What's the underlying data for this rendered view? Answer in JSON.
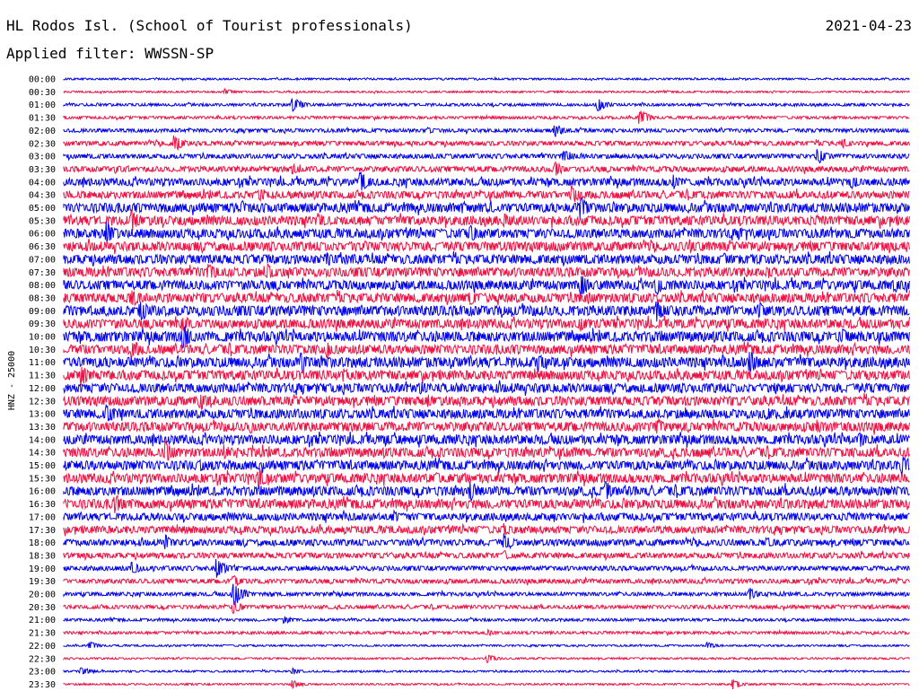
{
  "header": {
    "title": "HL Rodos Isl. (School of Tourist professionals)",
    "date": "2021-04-23",
    "filter": "Applied filter: WWSSN-SP"
  },
  "chart_data": {
    "type": "line",
    "title": "HL Rodos Isl. (School of Tourist professionals)",
    "ylabel": "HNZ - 25000",
    "colors": [
      "#0000ee",
      "#ee1144"
    ],
    "rows": [
      {
        "label": "00:00",
        "amp": 1,
        "events": []
      },
      {
        "label": "00:30",
        "amp": 1,
        "events": [
          [
            0.19,
            4
          ]
        ]
      },
      {
        "label": "01:00",
        "amp": 1.5,
        "events": [
          [
            0.27,
            9
          ],
          [
            0.63,
            8
          ]
        ]
      },
      {
        "label": "01:30",
        "amp": 1.5,
        "events": [
          [
            0.68,
            10
          ]
        ]
      },
      {
        "label": "02:00",
        "amp": 2,
        "events": [
          [
            0.58,
            8
          ],
          [
            0.43,
            4
          ]
        ]
      },
      {
        "label": "02:30",
        "amp": 2.5,
        "events": [
          [
            0.13,
            11
          ],
          [
            0.92,
            6
          ]
        ]
      },
      {
        "label": "03:00",
        "amp": 2.5,
        "events": [
          [
            0.59,
            9
          ],
          [
            0.89,
            10
          ],
          [
            0.44,
            3
          ]
        ]
      },
      {
        "label": "03:30",
        "amp": 3,
        "events": [
          [
            0.58,
            10
          ],
          [
            0.27,
            7
          ],
          [
            0.06,
            6
          ]
        ]
      },
      {
        "label": "04:00",
        "amp": 4,
        "events": [
          [
            0.35,
            13
          ],
          [
            0.72,
            9
          ],
          [
            0.93,
            9
          ]
        ]
      },
      {
        "label": "04:30",
        "amp": 4,
        "events": [
          [
            0.6,
            12
          ],
          [
            0.23,
            8
          ]
        ]
      },
      {
        "label": "05:00",
        "amp": 5,
        "events": [
          [
            0.61,
            14
          ],
          [
            0.21,
            9
          ],
          [
            0.47,
            8
          ]
        ]
      },
      {
        "label": "05:30",
        "amp": 5,
        "events": [
          [
            0.08,
            13
          ],
          [
            0.3,
            10
          ],
          [
            0.52,
            9
          ]
        ]
      },
      {
        "label": "06:00",
        "amp": 5,
        "events": [
          [
            0.05,
            15
          ],
          [
            0.48,
            11
          ],
          [
            0.8,
            7
          ]
        ]
      },
      {
        "label": "06:30",
        "amp": 5,
        "events": [
          [
            0.74,
            9
          ],
          [
            0.34,
            6
          ]
        ]
      },
      {
        "label": "07:00",
        "amp": 5,
        "events": [
          [
            0.31,
            10
          ],
          [
            0.78,
            8
          ]
        ]
      },
      {
        "label": "07:30",
        "amp": 5,
        "events": [
          [
            0.17,
            13
          ],
          [
            0.24,
            10
          ],
          [
            0.83,
            9
          ]
        ]
      },
      {
        "label": "08:00",
        "amp": 5,
        "events": [
          [
            0.61,
            14
          ],
          [
            0.7,
            13
          ],
          [
            0.98,
            11
          ]
        ]
      },
      {
        "label": "08:30",
        "amp": 5,
        "events": [
          [
            0.08,
            12
          ],
          [
            0.48,
            9
          ],
          [
            0.62,
            8
          ]
        ]
      },
      {
        "label": "09:00",
        "amp": 5.5,
        "events": [
          [
            0.09,
            14
          ],
          [
            0.7,
            13
          ],
          [
            0.82,
            12
          ]
        ]
      },
      {
        "label": "09:30",
        "amp": 5,
        "events": [
          [
            0.14,
            12
          ],
          [
            0.61,
            9
          ]
        ]
      },
      {
        "label": "10:00",
        "amp": 5.5,
        "events": [
          [
            0.14,
            16
          ],
          [
            0.92,
            10
          ]
        ]
      },
      {
        "label": "10:30",
        "amp": 5,
        "events": [
          [
            0.08,
            13
          ],
          [
            0.31,
            11
          ]
        ]
      },
      {
        "label": "11:00",
        "amp": 5.5,
        "events": [
          [
            0.28,
            15
          ],
          [
            0.81,
            14
          ],
          [
            0.56,
            12
          ]
        ]
      },
      {
        "label": "11:30",
        "amp": 5,
        "events": [
          [
            0.02,
            13
          ],
          [
            0.33,
            9
          ]
        ]
      },
      {
        "label": "12:00",
        "amp": 5,
        "events": [
          [
            0.42,
            9
          ],
          [
            0.84,
            8
          ]
        ]
      },
      {
        "label": "12:30",
        "amp": 5,
        "events": [
          [
            0.16,
            12
          ],
          [
            0.43,
            8
          ]
        ]
      },
      {
        "label": "13:00",
        "amp": 5,
        "events": [
          [
            0.05,
            14
          ],
          [
            0.83,
            8
          ]
        ]
      },
      {
        "label": "13:30",
        "amp": 5,
        "events": [
          [
            0.7,
            12
          ],
          [
            0.22,
            8
          ],
          [
            0.89,
            8
          ]
        ]
      },
      {
        "label": "14:00",
        "amp": 5,
        "events": [
          [
            0.94,
            10
          ],
          [
            0.38,
            7
          ]
        ]
      },
      {
        "label": "14:30",
        "amp": 5,
        "events": [
          [
            0.12,
            14
          ],
          [
            0.19,
            9
          ]
        ]
      },
      {
        "label": "15:00",
        "amp": 5,
        "events": [
          [
            0.99,
            11
          ],
          [
            0.16,
            8
          ]
        ]
      },
      {
        "label": "15:30",
        "amp": 5,
        "events": [
          [
            0.23,
            13
          ],
          [
            0.44,
            7
          ]
        ]
      },
      {
        "label": "16:00",
        "amp": 5,
        "events": [
          [
            0.48,
            13
          ],
          [
            0.64,
            12
          ]
        ]
      },
      {
        "label": "16:30",
        "amp": 5,
        "events": [
          [
            0.06,
            12
          ]
        ]
      },
      {
        "label": "17:00",
        "amp": 4,
        "events": [
          [
            0.39,
            7
          ]
        ]
      },
      {
        "label": "17:30",
        "amp": 4,
        "events": [
          [
            0.52,
            8
          ]
        ]
      },
      {
        "label": "18:00",
        "amp": 3.5,
        "events": [
          [
            0.52,
            12
          ],
          [
            0.12,
            9
          ],
          [
            0.83,
            7
          ]
        ]
      },
      {
        "label": "18:30",
        "amp": 3,
        "events": [
          [
            0.52,
            6
          ]
        ]
      },
      {
        "label": "19:00",
        "amp": 2.5,
        "events": [
          [
            0.18,
            12
          ],
          [
            0.08,
            8
          ]
        ]
      },
      {
        "label": "19:30",
        "amp": 2.5,
        "events": [
          [
            0.2,
            8
          ]
        ]
      },
      {
        "label": "20:00",
        "amp": 2,
        "events": [
          [
            0.2,
            16
          ],
          [
            0.81,
            7
          ]
        ]
      },
      {
        "label": "20:30",
        "amp": 2,
        "events": [
          [
            0.2,
            8
          ]
        ]
      },
      {
        "label": "21:00",
        "amp": 1.5,
        "events": [
          [
            0.26,
            5
          ]
        ]
      },
      {
        "label": "21:30",
        "amp": 1.5,
        "events": [
          [
            0.5,
            4
          ]
        ]
      },
      {
        "label": "22:00",
        "amp": 1,
        "events": [
          [
            0.03,
            5
          ],
          [
            0.76,
            4
          ]
        ]
      },
      {
        "label": "22:30",
        "amp": 1,
        "events": [
          [
            0.5,
            5
          ]
        ]
      },
      {
        "label": "23:00",
        "amp": 1,
        "events": [
          [
            0.02,
            6
          ],
          [
            0.27,
            4
          ]
        ]
      },
      {
        "label": "23:30",
        "amp": 1,
        "events": [
          [
            0.27,
            5
          ],
          [
            0.79,
            6
          ]
        ]
      }
    ]
  }
}
